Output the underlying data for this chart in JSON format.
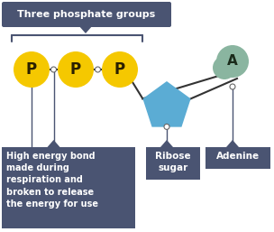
{
  "bg_color": "#ffffff",
  "dark_blue": "#4a5472",
  "yellow": "#f5c800",
  "blue_shape": "#5bacd4",
  "green_shape": "#8ab5a0",
  "white": "#ffffff",
  "line_color": "#333333",
  "title_text": "Three phosphate groups",
  "label_high_energy": "High energy bond\nmade during\nrespiration and\nbroken to release\nthe energy for use",
  "label_ribose": "Ribose\nsugar",
  "label_adenine": "Adenine",
  "p_label": "P",
  "a_label": "A",
  "figw": 3.04,
  "figh": 2.57,
  "dpi": 100
}
